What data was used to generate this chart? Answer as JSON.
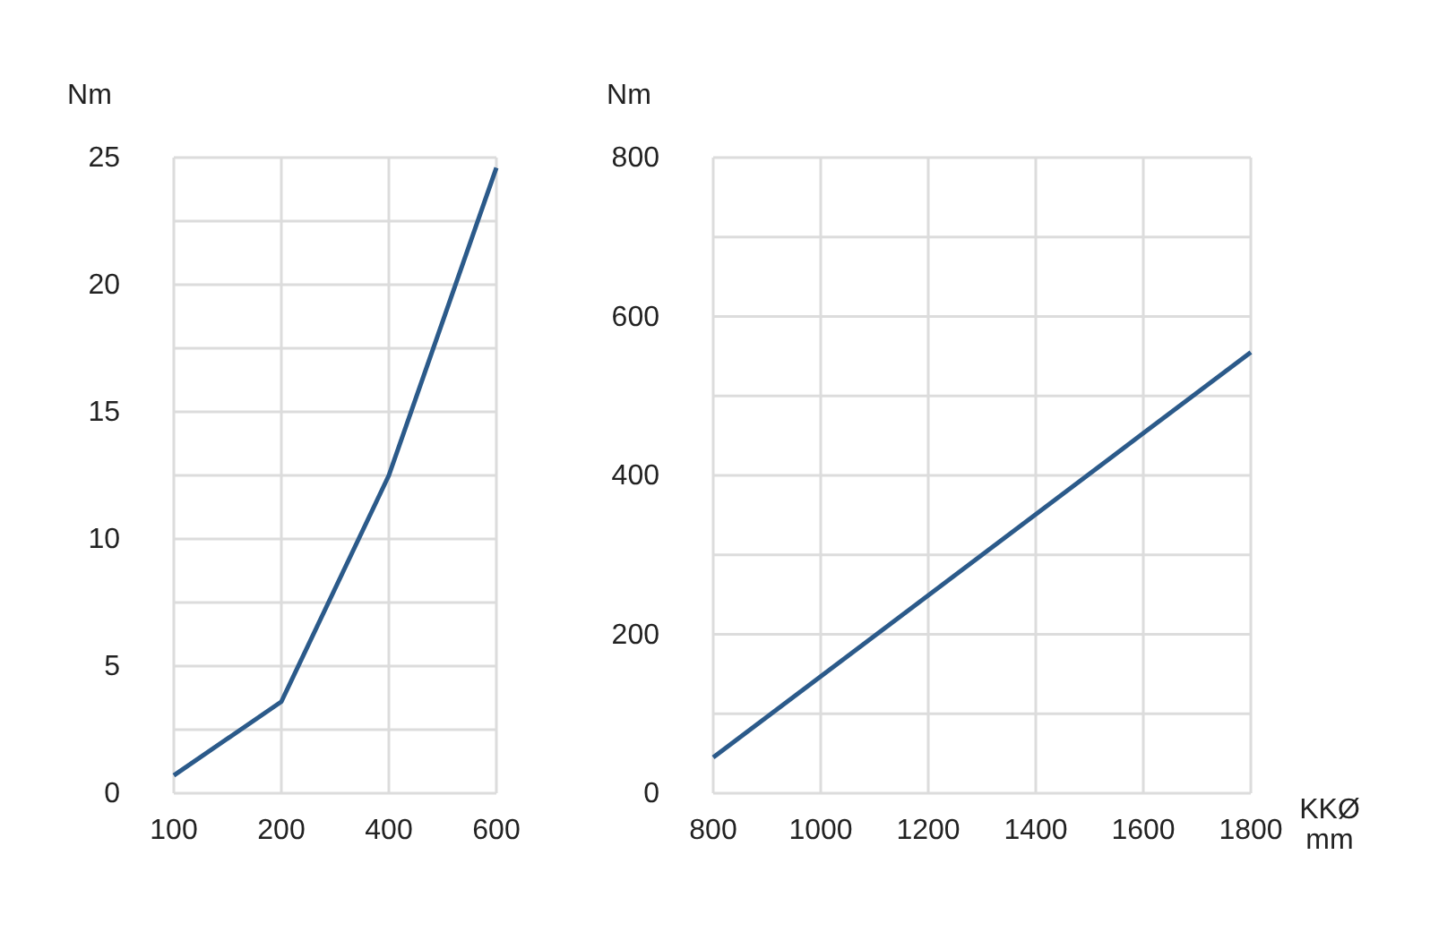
{
  "chart_data": [
    {
      "type": "line",
      "ylabel": "Nm",
      "categories": [
        "100",
        "200",
        "400",
        "600"
      ],
      "series": [
        {
          "color": "#2b5a8a",
          "values": [
            0.7,
            3.6,
            12.5,
            24.6
          ]
        }
      ],
      "ylim": [
        0,
        25
      ],
      "yticks": [
        0,
        {
          "value": 2.5,
          "label": null
        },
        5,
        {
          "value": 7.5,
          "label": null
        },
        10,
        {
          "value": 12.5,
          "label": null
        },
        15,
        {
          "value": 17.5,
          "label": null
        },
        20,
        {
          "value": 22.5,
          "label": null
        },
        25
      ],
      "grid": true,
      "marker": "none",
      "line_style": "solid"
    },
    {
      "type": "line",
      "ylabel": "Nm",
      "xlabel": "KKØ\nmm",
      "x": [
        800,
        1800
      ],
      "series": [
        {
          "color": "#2b5a8a",
          "values": [
            45,
            555
          ]
        }
      ],
      "xlim": [
        800,
        1800
      ],
      "xticks": [
        800,
        1000,
        1200,
        1400,
        1600,
        1800
      ],
      "ylim": [
        0,
        800
      ],
      "yticks": [
        0,
        {
          "value": 100,
          "label": null
        },
        200,
        {
          "value": 300,
          "label": null
        },
        400,
        {
          "value": 500,
          "label": null
        },
        600,
        {
          "value": 700,
          "label": null
        },
        800
      ],
      "grid": true,
      "marker": "none",
      "line_style": "solid"
    }
  ]
}
